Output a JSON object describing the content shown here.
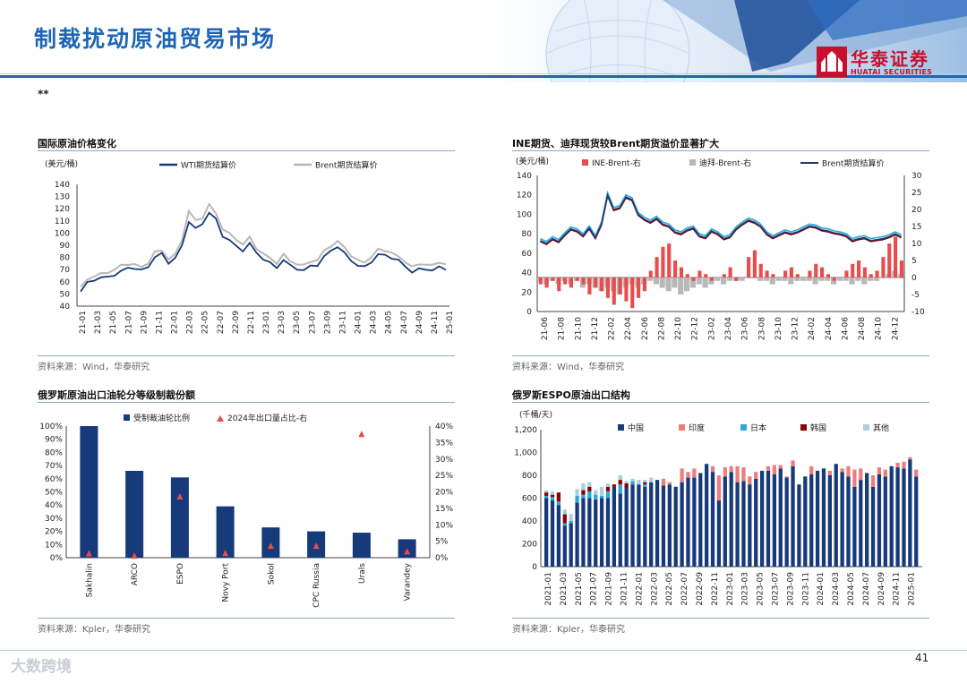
{
  "header": {
    "title": "制裁扰动原油贸易市场",
    "logo_cn": "华泰证券",
    "logo_en": "HUATAI SECURITIES"
  },
  "note": "**",
  "page_number": "41",
  "watermark": "大数跨境",
  "colors": {
    "navy": "#163a7a",
    "red": "#e94c4c",
    "gray": "#b8b8b8",
    "cyan": "#2aa8d8",
    "darkred": "#8b0000",
    "lightblue": "#a9cfe3",
    "salmon": "#ef7d7d",
    "blue": "#1e66b5"
  },
  "charts": [
    {
      "title": "国际原油价格变化",
      "source": "资料来源：Wind，华泰研究"
    },
    {
      "title": "INE期货、迪拜现货较Brent期货溢价显著扩大",
      "source": "资料来源：Wind，华泰研究"
    },
    {
      "title": "俄罗斯原油出口油轮分等级制裁份额",
      "source": "资料来源：Kpler，华泰研究"
    },
    {
      "title": "俄罗斯ESPO原油出口结构",
      "source": "资料来源：Kpler，华泰研究"
    }
  ],
  "chart_data": [
    {
      "type": "line",
      "unit_label": "(美元/桶)",
      "ylim": [
        40,
        140
      ],
      "yticks": [
        40,
        50,
        60,
        70,
        80,
        90,
        100,
        110,
        120,
        130,
        140
      ],
      "x_labels": [
        "21-01",
        "21-03",
        "21-05",
        "21-07",
        "21-09",
        "21-11",
        "22-01",
        "22-03",
        "22-05",
        "22-07",
        "22-09",
        "22-11",
        "23-01",
        "23-03",
        "23-05",
        "23-07",
        "23-09",
        "23-11",
        "24-01",
        "24-03",
        "24-05",
        "24-07",
        "24-09",
        "24-11",
        "25-01"
      ],
      "series": [
        {
          "name": "WTI期货结算价",
          "values": [
            52,
            59,
            62,
            63,
            64,
            66,
            68,
            72,
            71,
            69,
            73,
            80,
            83,
            76,
            79,
            90,
            110,
            103,
            108,
            117,
            111,
            98,
            94,
            89,
            86,
            91,
            84,
            79,
            75,
            72,
            78,
            73,
            71,
            69,
            73,
            74,
            80,
            86,
            89,
            83,
            78,
            73,
            72,
            77,
            82,
            82,
            80,
            77,
            73,
            68,
            70,
            71,
            69,
            72,
            71
          ]
        },
        {
          "name": "Brent期货结算价",
          "values": [
            55,
            62,
            65,
            66,
            68,
            70,
            73,
            75,
            74,
            72,
            76,
            84,
            86,
            79,
            82,
            95,
            118,
            110,
            113,
            123,
            116,
            104,
            99,
            95,
            91,
            96,
            88,
            83,
            79,
            76,
            82,
            77,
            75,
            73,
            77,
            78,
            85,
            90,
            93,
            88,
            82,
            77,
            76,
            81,
            86,
            86,
            84,
            80,
            77,
            72,
            74,
            75,
            73,
            76,
            75
          ]
        }
      ]
    },
    {
      "type": "line",
      "unit_label": "(美元/桶)",
      "ylim": [
        0,
        140
      ],
      "yticks": [
        0,
        20,
        40,
        60,
        80,
        100,
        120,
        140
      ],
      "y2lim": [
        -10,
        30
      ],
      "y2ticks": [
        -10,
        -5,
        0,
        5,
        10,
        15,
        20,
        25,
        30
      ],
      "x_labels": [
        "21-06",
        "21-08",
        "21-10",
        "21-12",
        "22-02",
        "22-04",
        "22-06",
        "22-08",
        "22-10",
        "22-12",
        "23-02",
        "23-04",
        "23-06",
        "23-08",
        "23-10",
        "23-12",
        "24-02",
        "24-04",
        "24-06",
        "24-08",
        "24-10",
        "24-12"
      ],
      "series": [
        {
          "name": "INE-Brent-右",
          "values": [
            -2,
            -3,
            -1,
            -4,
            -2,
            -3,
            -1,
            -2,
            -5,
            -3,
            -4,
            -6,
            -8,
            -5,
            -7,
            -9,
            -6,
            -4,
            2,
            6,
            9,
            10,
            5,
            3,
            1,
            -1,
            2,
            1,
            -1,
            0,
            1,
            3,
            -1,
            0,
            6,
            8,
            4,
            2,
            1,
            0,
            2,
            3,
            1,
            0,
            2,
            4,
            3,
            1,
            -1,
            0,
            2,
            4,
            5,
            3,
            1,
            2,
            6,
            10,
            12,
            5
          ]
        },
        {
          "name": "迪拜-Brent-右",
          "values": [
            -1,
            -2,
            -1,
            -2,
            -1,
            -2,
            -1,
            -3,
            -2,
            -3,
            -4,
            -3,
            -4,
            -5,
            -3,
            -2,
            -3,
            -2,
            -1,
            -2,
            -3,
            -4,
            -3,
            -5,
            -4,
            -3,
            -2,
            -3,
            -2,
            -1,
            -2,
            -1,
            -1,
            -1,
            0,
            0,
            -1,
            -1,
            -2,
            -1,
            -1,
            -2,
            -1,
            -1,
            -1,
            -2,
            -1,
            -1,
            -2,
            -1,
            -1,
            -2,
            -1,
            -2,
            -1,
            -1,
            0,
            1,
            2,
            1
          ]
        },
        {
          "name": "Brent期货结算价",
          "values": [
            73,
            70,
            75,
            72,
            79,
            85,
            83,
            78,
            86,
            76,
            90,
            120,
            105,
            107,
            118,
            115,
            100,
            95,
            92,
            96,
            90,
            88,
            82,
            80,
            84,
            86,
            78,
            76,
            83,
            80,
            75,
            77,
            85,
            90,
            94,
            92,
            88,
            80,
            76,
            79,
            82,
            80,
            82,
            85,
            88,
            87,
            84,
            83,
            81,
            80,
            78,
            73,
            75,
            76,
            73,
            74,
            75,
            77,
            80,
            77
          ]
        }
      ]
    },
    {
      "type": "bar",
      "legend": [
        "受制裁油轮比例",
        "2024年出口量占比-右"
      ],
      "categories": [
        "Sakhalin",
        "ARCO",
        "ESPO",
        "Novy Port",
        "Sokol",
        "CPC Russia",
        "Urals",
        "Varandey"
      ],
      "ylim": [
        0,
        100
      ],
      "yticks": [
        "0%",
        "10%",
        "20%",
        "30%",
        "40%",
        "50%",
        "60%",
        "70%",
        "80%",
        "90%",
        "100%"
      ],
      "y2lim": [
        0,
        40
      ],
      "y2ticks": [
        "0%",
        "5%",
        "10%",
        "15%",
        "20%",
        "25%",
        "30%",
        "35%",
        "40%"
      ],
      "series": [
        {
          "name": "受制裁油轮比例",
          "values": [
            100,
            66,
            61,
            39,
            23,
            20,
            19,
            14
          ]
        },
        {
          "name": "2024年出口量占比-右",
          "values": [
            1.2,
            0.5,
            18.5,
            1.3,
            3.5,
            3.5,
            37.5,
            1.8
          ]
        }
      ]
    },
    {
      "type": "bar",
      "stacked": true,
      "unit_label": "(千桶/天)",
      "ylim": [
        0,
        1200
      ],
      "yticks": [
        "0",
        "200",
        "400",
        "600",
        "800",
        "1,000",
        "1,200"
      ],
      "x_labels": [
        "2021-01",
        "2021-03",
        "2021-05",
        "2021-07",
        "2021-09",
        "2021-11",
        "2022-01",
        "2022-03",
        "2022-05",
        "2022-07",
        "2022-09",
        "2022-11",
        "2023-01",
        "2023-03",
        "2023-05",
        "2023-07",
        "2023-09",
        "2023-11",
        "2024-01",
        "2024-03",
        "2024-05",
        "2024-07",
        "2024-09",
        "2024-11",
        "2025-01"
      ],
      "series": [
        {
          "name": "中国",
          "values": [
            600,
            580,
            540,
            360,
            380,
            560,
            600,
            600,
            590,
            600,
            600,
            700,
            640,
            690,
            720,
            720,
            700,
            740,
            760,
            710,
            720,
            700,
            740,
            780,
            780,
            820,
            900,
            830,
            580,
            790,
            830,
            740,
            750,
            720,
            770,
            840,
            840,
            810,
            860,
            780,
            880,
            720,
            790,
            810,
            840,
            860,
            800,
            900,
            830,
            790,
            700,
            760,
            820,
            700,
            810,
            790,
            880,
            870,
            860,
            940,
            790
          ]
        },
        {
          "name": "印度",
          "values": [
            0,
            0,
            0,
            0,
            0,
            0,
            0,
            0,
            0,
            0,
            0,
            0,
            0,
            0,
            0,
            0,
            0,
            0,
            0,
            60,
            20,
            0,
            120,
            50,
            80,
            0,
            0,
            50,
            220,
            80,
            50,
            140,
            120,
            70,
            60,
            0,
            40,
            80,
            30,
            10,
            50,
            0,
            0,
            70,
            0,
            0,
            40,
            0,
            30,
            90,
            150,
            100,
            0,
            100,
            60,
            60,
            0,
            40,
            60,
            20,
            60
          ]
        },
        {
          "name": "日本",
          "values": [
            20,
            30,
            30,
            20,
            20,
            60,
            30,
            60,
            40,
            20,
            60,
            0,
            80,
            0,
            30,
            0,
            20,
            0,
            0,
            0,
            0,
            0,
            0,
            0,
            0,
            0,
            0,
            0,
            0,
            0,
            0,
            0,
            0,
            0,
            0,
            0,
            0,
            0,
            0,
            0,
            0,
            0,
            0,
            0,
            0,
            0,
            0,
            0,
            0,
            0,
            0,
            0,
            0,
            0,
            0,
            0,
            0,
            0,
            0,
            0,
            0
          ]
        },
        {
          "name": "韩国",
          "values": [
            30,
            20,
            80,
            80,
            0,
            0,
            40,
            40,
            0,
            0,
            40,
            20,
            40,
            40,
            0,
            0,
            20,
            0,
            0,
            0,
            0,
            0,
            0,
            0,
            0,
            0,
            0,
            0,
            0,
            0,
            0,
            0,
            0,
            0,
            0,
            0,
            0,
            0,
            0,
            0,
            0,
            0,
            0,
            0,
            0,
            0,
            0,
            0,
            0,
            0,
            0,
            0,
            0,
            0,
            0,
            0,
            0,
            0,
            0,
            0,
            0
          ]
        },
        {
          "name": "其他",
          "values": [
            20,
            30,
            0,
            40,
            60,
            60,
            60,
            40,
            40,
            80,
            30,
            0,
            40,
            20,
            20,
            40,
            20,
            40,
            0,
            0,
            0,
            0,
            0,
            0,
            0,
            0,
            0,
            0,
            0,
            0,
            0,
            0,
            0,
            0,
            0,
            0,
            0,
            0,
            0,
            0,
            0,
            0,
            0,
            0,
            0,
            0,
            0,
            0,
            0,
            0,
            0,
            0,
            0,
            0,
            0,
            0,
            0,
            0,
            0,
            0,
            0
          ]
        }
      ]
    }
  ]
}
